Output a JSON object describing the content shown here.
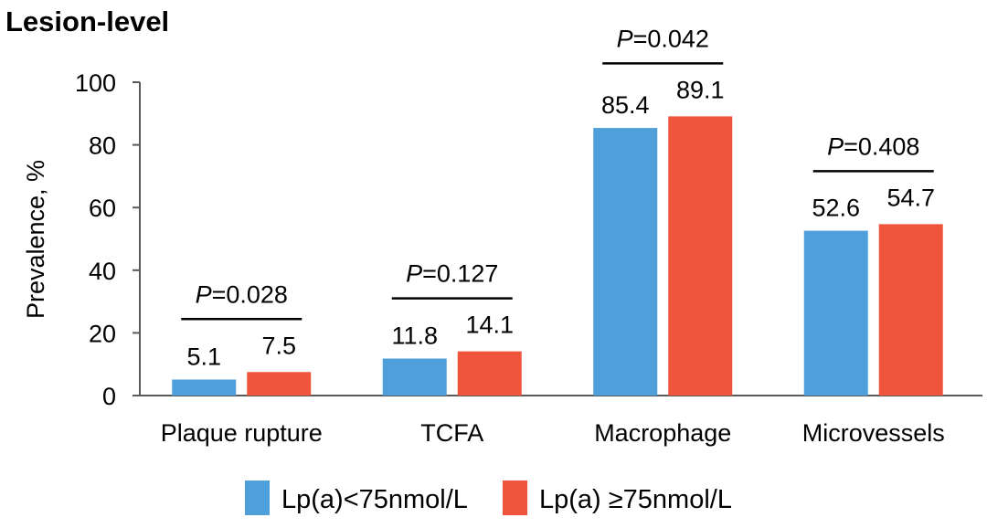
{
  "chart_data": {
    "type": "bar",
    "title": "Lesion-level",
    "xlabel": "",
    "ylabel": "Prevalence, %",
    "ylim": [
      0,
      100
    ],
    "yticks": [
      0,
      20,
      40,
      60,
      80,
      100
    ],
    "grid": false,
    "legend_position": "bottom",
    "categories": [
      "Plaque rupture",
      "TCFA",
      "Macrophage",
      "Microvessels"
    ],
    "series": [
      {
        "name": "Lp(a)<75nmol/L",
        "color": "#4f9fda",
        "values": [
          5.1,
          11.8,
          85.4,
          52.6
        ]
      },
      {
        "name": "Lp(a) ≥75nmol/L",
        "color": "#ef553c",
        "values": [
          7.5,
          14.1,
          89.1,
          54.7
        ]
      }
    ],
    "annotations": [
      {
        "category": "Plaque rupture",
        "p_label": "P",
        "p_value": "=0.028"
      },
      {
        "category": "TCFA",
        "p_label": "P",
        "p_value": "=0.127"
      },
      {
        "category": "Macrophage",
        "p_label": "P",
        "p_value": "=0.042"
      },
      {
        "category": "Microvessels",
        "p_label": "P",
        "p_value": "=0.408"
      }
    ]
  }
}
